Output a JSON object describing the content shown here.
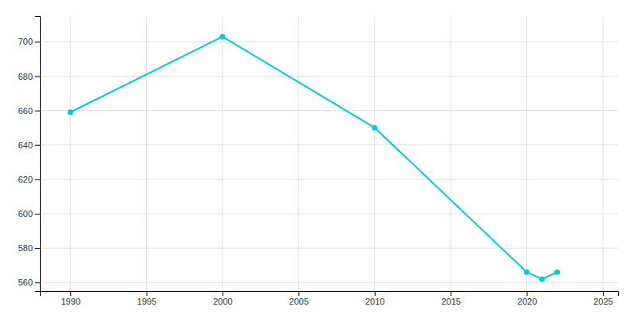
{
  "chart_data": {
    "type": "line",
    "x": [
      1990,
      2000,
      2010,
      2020,
      2021,
      2022
    ],
    "values": [
      659,
      703,
      650,
      566,
      562,
      566
    ],
    "color": "#00CED1",
    "marker": "circle",
    "xlim": [
      1988,
      2026
    ],
    "ylim": [
      555,
      715
    ],
    "xticks": [
      1990,
      1995,
      2000,
      2005,
      2010,
      2015,
      2020,
      2025
    ],
    "yticks": [
      560,
      580,
      600,
      620,
      640,
      660,
      680,
      700
    ],
    "grid": true
  }
}
